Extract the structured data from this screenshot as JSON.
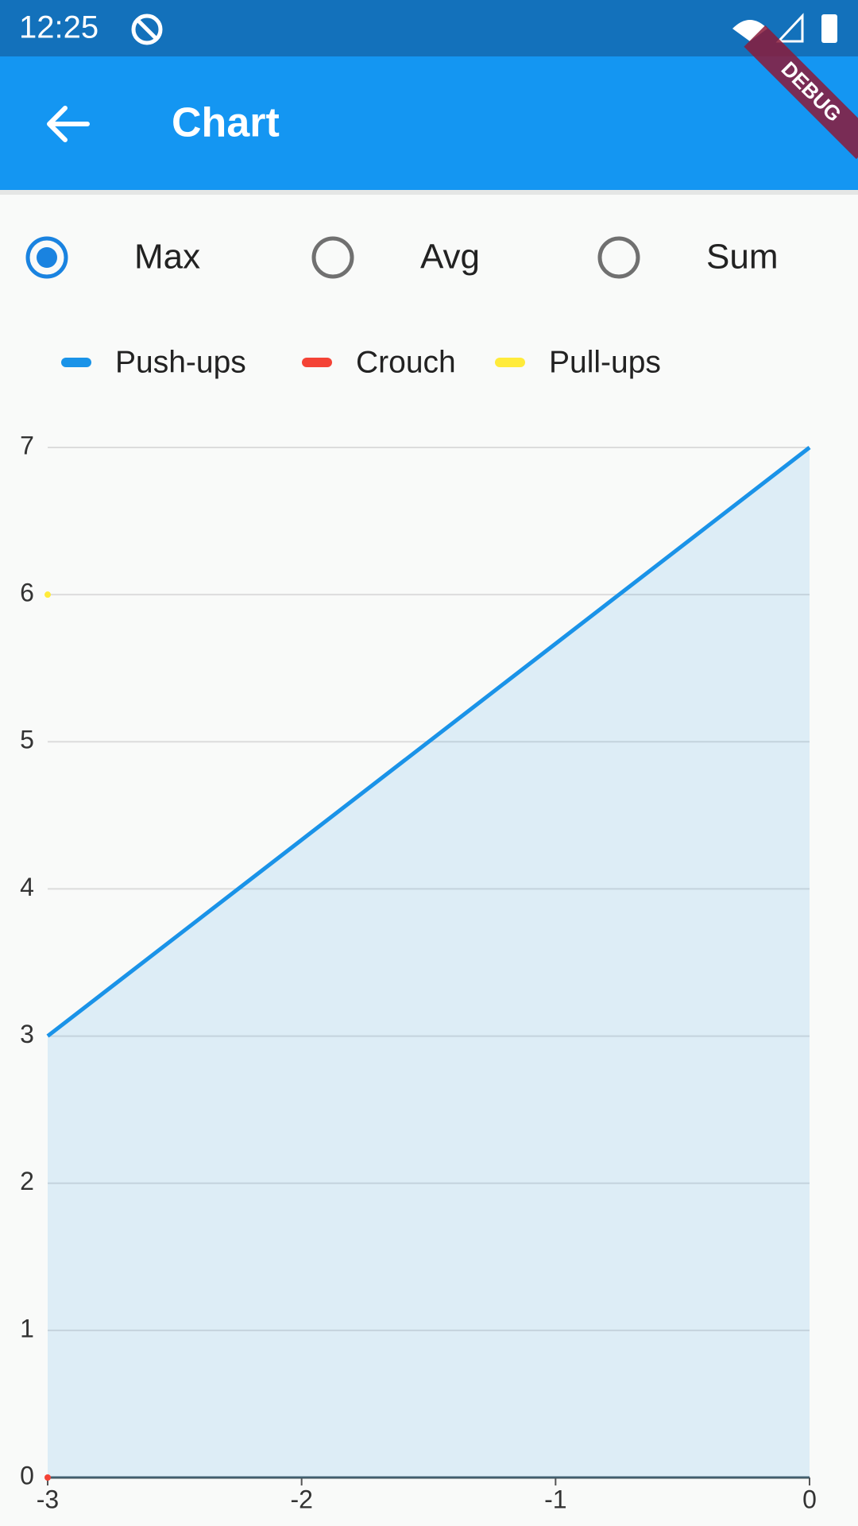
{
  "status_bar": {
    "time": "12:25"
  },
  "debug_banner": "DEBUG",
  "app_bar": {
    "title": "Chart"
  },
  "radio_group": {
    "options": [
      "Max",
      "Avg",
      "Sum"
    ],
    "selected": 0
  },
  "chart_data": {
    "type": "line",
    "series": [
      {
        "name": "Push-ups",
        "color": "#1a93e8",
        "x": [
          -3,
          0
        ],
        "values": [
          3,
          7
        ],
        "area": true
      },
      {
        "name": "Crouch",
        "color": "#f44336",
        "x": [
          -3
        ],
        "values": [
          0
        ]
      },
      {
        "name": "Pull-ups",
        "color": "#ffeb3b",
        "x": [
          -3
        ],
        "values": [
          6
        ]
      }
    ],
    "xlim": [
      -3,
      0
    ],
    "xticks": [
      -3,
      -2,
      -1,
      0
    ],
    "ylim": [
      0,
      7
    ],
    "yticks": [
      0,
      1,
      2,
      3,
      4,
      5,
      6,
      7
    ],
    "grid": true
  }
}
